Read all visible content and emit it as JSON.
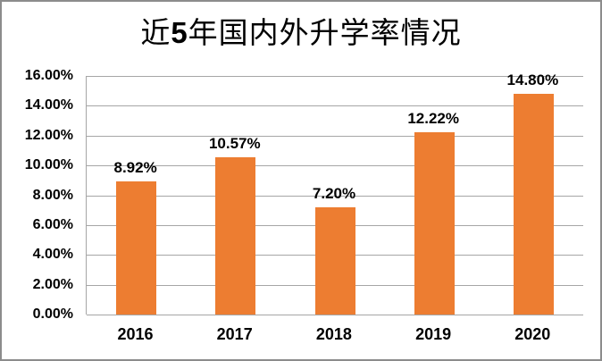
{
  "title": {
    "prefix": "近",
    "number": "5",
    "suffix": "年国内外升学率情况",
    "full": "近5年国内外升学率情况"
  },
  "chart_data": {
    "type": "bar",
    "title": "近5年国内外升学率情况",
    "categories": [
      "2016",
      "2017",
      "2018",
      "2019",
      "2020"
    ],
    "values": [
      8.92,
      10.57,
      7.2,
      12.22,
      14.8
    ],
    "data_labels": [
      "8.92%",
      "10.57%",
      "7.20%",
      "12.22%",
      "14.80%"
    ],
    "xlabel": "",
    "ylabel": "",
    "ylim": [
      0,
      16
    ],
    "ytick_step": 2,
    "ytick_labels": [
      "0.00%",
      "2.00%",
      "4.00%",
      "6.00%",
      "8.00%",
      "10.00%",
      "12.00%",
      "14.00%",
      "16.00%"
    ],
    "grid": true,
    "legend": false,
    "bar_color": "#ED7D31",
    "gridline_color": "#A6A6A6",
    "border_color": "#8C8C8C",
    "text_color": "#000000"
  }
}
